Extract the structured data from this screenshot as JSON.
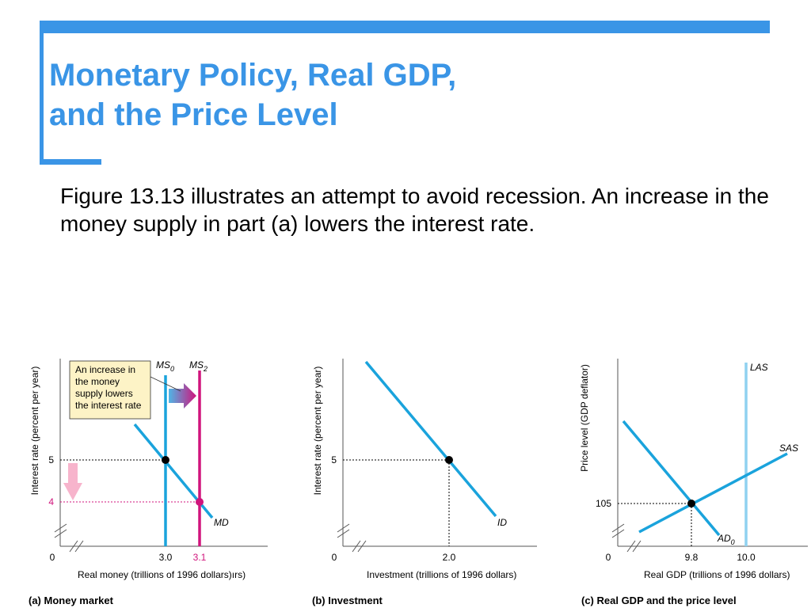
{
  "slide": {
    "title_line1": "Monetary Policy, Real GDP,",
    "title_line2": "and the Price Level",
    "body": "Figure 13.13 illustrates an attempt to avoid recession. An increase in the money supply in part (a) lowers the interest rate."
  },
  "colors": {
    "accent": "#3a95e6",
    "curve": "#1aa3dc",
    "las": "#8fd1f0",
    "magenta": "#d0147c",
    "pink_arrow": "#f7b4cc"
  },
  "chart_data": [
    {
      "type": "line",
      "caption": "(a) Money market",
      "xlabel": "Real money (trillions of 1996 dollars)",
      "xlabel_extra": "ırs)",
      "ylabel": "Interest rate (percent per year)",
      "origin_label": "0",
      "x_ticks": [
        "3.0",
        "3.1"
      ],
      "y_ticks": [
        "5",
        "4"
      ],
      "callout": "An increase in the money supply lowers the interest rate",
      "series": [
        {
          "name": "MS",
          "subscript": "0",
          "kind": "vertical",
          "x": 3.0
        },
        {
          "name": "MS",
          "subscript": "2",
          "kind": "vertical",
          "x": 3.1
        },
        {
          "name": "MD",
          "kind": "downward",
          "points": [
            [
              3.0,
              5
            ],
            [
              3.1,
              4
            ]
          ]
        }
      ],
      "equilibria": [
        {
          "x": 3.0,
          "y": 5
        },
        {
          "x": 3.1,
          "y": 4
        }
      ]
    },
    {
      "type": "line",
      "caption": "(b) Investment",
      "xlabel": "Investment (trillions of 1996 dollars)",
      "ylabel": "Interest rate (percent per year)",
      "origin_label": "0",
      "x_ticks": [
        "2.0"
      ],
      "y_ticks": [
        "5"
      ],
      "series": [
        {
          "name": "ID",
          "kind": "downward",
          "points": [
            [
              2.0,
              5
            ]
          ]
        }
      ],
      "equilibria": [
        {
          "x": 2.0,
          "y": 5
        }
      ]
    },
    {
      "type": "line",
      "caption": "(c) Real GDP and the price level",
      "xlabel": "Real GDP (trillions of 1996 dollars)",
      "ylabel": "Price level (GDP deflator)",
      "origin_label": "0",
      "x_ticks": [
        "9.8",
        "10.0"
      ],
      "y_ticks": [
        "105"
      ],
      "series": [
        {
          "name": "LAS",
          "kind": "vertical",
          "x": 10.0
        },
        {
          "name": "SAS",
          "kind": "upward"
        },
        {
          "name": "AD",
          "subscript": "0",
          "kind": "downward"
        }
      ],
      "equilibria": [
        {
          "x": 9.8,
          "y": 105
        }
      ]
    }
  ]
}
